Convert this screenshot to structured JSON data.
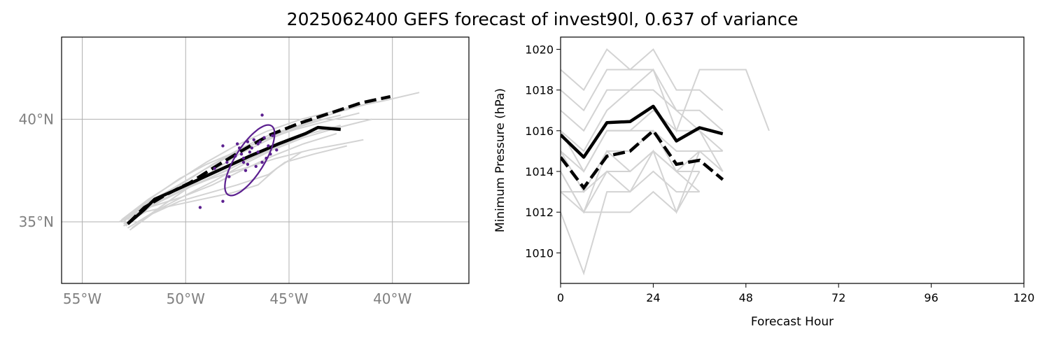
{
  "title": "2025062400 GEFS forecast of invest90l, 0.637 of variance",
  "colors": {
    "member": "#d3d3d3",
    "mean": "#000000",
    "ellipse": "#5b1f8f",
    "grid": "#b0b0b0",
    "maptick": "#808080"
  },
  "chart_data": [
    {
      "type": "map",
      "name": "track-map",
      "xlim": [
        -56,
        -36.3
      ],
      "ylim": [
        32,
        44
      ],
      "grid": true,
      "xticks": [
        -55,
        -50,
        -45,
        -40
      ],
      "xtick_labels": [
        "55°W",
        "50°W",
        "45°W",
        "40°W"
      ],
      "yticks": [
        35,
        40
      ],
      "ytick_labels": [
        "35°N",
        "40°N"
      ],
      "member_tracks": [
        [
          [
            -53.0,
            34.8
          ],
          [
            -51.6,
            35.8
          ],
          [
            -50.0,
            36.6
          ],
          [
            -48.5,
            37.3
          ],
          [
            -47.0,
            38.0
          ],
          [
            -45.5,
            38.7
          ],
          [
            -44.0,
            39.3
          ],
          [
            -42.5,
            39.7
          ]
        ],
        [
          [
            -53.2,
            35.0
          ],
          [
            -51.9,
            35.9
          ],
          [
            -50.5,
            36.7
          ],
          [
            -49.0,
            37.6
          ],
          [
            -47.5,
            38.4
          ],
          [
            -46.0,
            39.1
          ],
          [
            -44.5,
            39.7
          ],
          [
            -42.8,
            40.3
          ],
          [
            -41.0,
            40.8
          ]
        ],
        [
          [
            -52.8,
            34.7
          ],
          [
            -51.5,
            35.5
          ],
          [
            -50.0,
            36.3
          ],
          [
            -48.6,
            37.0
          ],
          [
            -47.2,
            37.8
          ],
          [
            -45.8,
            38.5
          ],
          [
            -44.3,
            39.1
          ],
          [
            -42.6,
            39.6
          ],
          [
            -41.0,
            40.0
          ]
        ],
        [
          [
            -53.1,
            35.1
          ],
          [
            -51.8,
            36.1
          ],
          [
            -50.4,
            37.0
          ],
          [
            -49.0,
            37.9
          ],
          [
            -47.6,
            38.7
          ],
          [
            -46.1,
            39.4
          ],
          [
            -44.4,
            40.0
          ],
          [
            -42.4,
            40.5
          ],
          [
            -40.4,
            40.9
          ],
          [
            -38.7,
            41.3
          ]
        ],
        [
          [
            -52.9,
            34.9
          ],
          [
            -51.7,
            35.8
          ],
          [
            -50.3,
            36.5
          ],
          [
            -48.8,
            37.1
          ],
          [
            -47.2,
            37.6
          ],
          [
            -45.6,
            38.1
          ],
          [
            -44.0,
            38.5
          ],
          [
            -42.4,
            38.8
          ],
          [
            -41.4,
            39.0
          ]
        ],
        [
          [
            -52.7,
            34.6
          ],
          [
            -51.6,
            35.4
          ],
          [
            -50.3,
            36.0
          ],
          [
            -48.9,
            36.4
          ],
          [
            -47.5,
            36.8
          ],
          [
            -46.0,
            37.3
          ],
          [
            -45.2,
            37.9
          ],
          [
            -43.8,
            38.3
          ],
          [
            -42.2,
            38.7
          ]
        ],
        [
          [
            -53.0,
            34.9
          ],
          [
            -51.9,
            35.5
          ],
          [
            -50.6,
            35.8
          ],
          [
            -49.2,
            36.1
          ],
          [
            -47.8,
            36.4
          ],
          [
            -46.5,
            36.8
          ],
          [
            -45.6,
            37.6
          ],
          [
            -44.4,
            38.4
          ]
        ],
        [
          [
            -52.6,
            34.7
          ],
          [
            -51.4,
            35.6
          ],
          [
            -50.1,
            36.5
          ],
          [
            -48.8,
            37.4
          ],
          [
            -47.4,
            38.3
          ],
          [
            -46.0,
            39.0
          ],
          [
            -44.6,
            39.6
          ],
          [
            -43.0,
            40.1
          ]
        ],
        [
          [
            -53.2,
            35.0
          ],
          [
            -51.8,
            35.7
          ],
          [
            -50.2,
            36.2
          ],
          [
            -48.7,
            36.8
          ],
          [
            -47.3,
            37.5
          ],
          [
            -45.8,
            38.2
          ],
          [
            -44.3,
            38.8
          ],
          [
            -42.7,
            39.3
          ]
        ],
        [
          [
            -52.9,
            34.8
          ],
          [
            -51.5,
            35.9
          ],
          [
            -50.1,
            36.9
          ],
          [
            -48.7,
            37.8
          ],
          [
            -47.3,
            38.6
          ],
          [
            -45.8,
            39.3
          ],
          [
            -44.1,
            39.8
          ],
          [
            -42.5,
            40.2
          ]
        ],
        [
          [
            -53.0,
            35.0
          ],
          [
            -52.0,
            35.9
          ],
          [
            -50.8,
            36.4
          ],
          [
            -49.4,
            36.9
          ],
          [
            -48.0,
            37.5
          ],
          [
            -46.7,
            38.2
          ],
          [
            -45.3,
            38.8
          ]
        ],
        [
          [
            -52.8,
            35.1
          ],
          [
            -51.6,
            36.2
          ],
          [
            -50.3,
            37.1
          ],
          [
            -49.0,
            37.8
          ],
          [
            -47.6,
            38.4
          ],
          [
            -46.2,
            39.0
          ],
          [
            -44.7,
            39.5
          ],
          [
            -43.2,
            39.9
          ],
          [
            -41.6,
            40.3
          ]
        ]
      ],
      "mean_track": [
        [
          -52.8,
          34.9
        ],
        [
          -52.0,
          35.6
        ],
        [
          -51.5,
          36.1
        ],
        [
          -50.6,
          36.5
        ],
        [
          -49.5,
          37.0
        ],
        [
          -48.2,
          37.6
        ],
        [
          -46.9,
          38.2
        ],
        [
          -45.5,
          38.8
        ],
        [
          -44.2,
          39.3
        ],
        [
          -43.6,
          39.6
        ],
        [
          -42.5,
          39.5
        ]
      ],
      "mean_track_dashed": [
        [
          -52.8,
          34.9
        ],
        [
          -52.0,
          35.7
        ],
        [
          -51.0,
          36.3
        ],
        [
          -49.8,
          36.9
        ],
        [
          -48.7,
          37.6
        ],
        [
          -47.4,
          38.4
        ],
        [
          -46.0,
          39.2
        ],
        [
          -44.5,
          39.8
        ],
        [
          -43.0,
          40.3
        ],
        [
          -41.5,
          40.8
        ],
        [
          -40.1,
          41.1
        ]
      ],
      "scatter_points": [
        [
          -46.3,
          40.2
        ],
        [
          -49.3,
          35.7
        ],
        [
          -48.2,
          36.0
        ],
        [
          -47.1,
          37.5
        ],
        [
          -47.0,
          37.8
        ],
        [
          -47.3,
          38.3
        ],
        [
          -47.6,
          38.2
        ],
        [
          -46.8,
          38.6
        ],
        [
          -46.5,
          38.8
        ],
        [
          -46.7,
          39.0
        ],
        [
          -46.4,
          38.9
        ],
        [
          -46.2,
          39.1
        ],
        [
          -47.0,
          38.9
        ],
        [
          -47.4,
          38.6
        ],
        [
          -48.2,
          38.7
        ],
        [
          -48.0,
          37.9
        ],
        [
          -48.6,
          37.6
        ],
        [
          -45.9,
          38.3
        ],
        [
          -46.1,
          38.1
        ],
        [
          -45.6,
          38.5
        ],
        [
          -46.6,
          37.7
        ],
        [
          -47.9,
          37.2
        ],
        [
          -47.2,
          38.1
        ],
        [
          -46.9,
          38.4
        ],
        [
          -46.3,
          37.9
        ],
        [
          -46.0,
          38.7
        ],
        [
          -45.8,
          39.2
        ],
        [
          -47.5,
          38.8
        ],
        [
          -46.5,
          38.4
        ],
        [
          -47.2,
          37.9
        ]
      ],
      "ellipse": {
        "center": [
          -46.9,
          38.0
        ],
        "semi_major_deg": 3.0,
        "semi_minor_deg": 1.05,
        "angle_deg": 58
      }
    },
    {
      "type": "line",
      "name": "pressure",
      "xlabel": "Forecast Hour",
      "ylabel": "Minimum Pressure (hPa)",
      "xlim": [
        0,
        120
      ],
      "ylim": [
        1008.5,
        1020.6
      ],
      "xticks": [
        0,
        24,
        48,
        72,
        96,
        120
      ],
      "yticks": [
        1010,
        1012,
        1014,
        1016,
        1018,
        1020
      ],
      "member_series": [
        {
          "x": [
            0,
            6,
            12,
            18,
            24,
            30,
            36,
            42
          ],
          "y": [
            1019,
            1018,
            1020,
            1019,
            1020,
            1018,
            1018,
            1017
          ]
        },
        {
          "x": [
            0,
            6,
            12,
            18,
            24,
            30,
            36,
            42
          ],
          "y": [
            1018,
            1017,
            1019,
            1019,
            1019,
            1017,
            1017,
            1016
          ]
        },
        {
          "x": [
            0,
            6,
            12,
            18,
            24,
            30,
            36,
            42,
            48,
            54
          ],
          "y": [
            1017,
            1016,
            1018,
            1018,
            1019,
            1016,
            1019,
            1019,
            1019,
            1016
          ]
        },
        {
          "x": [
            0,
            6,
            12,
            18,
            24,
            30,
            36,
            42
          ],
          "y": [
            1016,
            1015,
            1017,
            1018,
            1018,
            1017,
            1016,
            1015
          ]
        },
        {
          "x": [
            0,
            6,
            12,
            18,
            24,
            30,
            36,
            42
          ],
          "y": [
            1016,
            1014,
            1016,
            1016,
            1017,
            1016,
            1016,
            1014
          ]
        },
        {
          "x": [
            0,
            6,
            12,
            18,
            24,
            30,
            36,
            42
          ],
          "y": [
            1015,
            1014,
            1016,
            1016,
            1016,
            1015,
            1015,
            1015
          ]
        },
        {
          "x": [
            0,
            6,
            12,
            18,
            24,
            30,
            36,
            42
          ],
          "y": [
            1015,
            1013,
            1015,
            1015,
            1016,
            1014,
            1015,
            1014
          ]
        },
        {
          "x": [
            0,
            6,
            12,
            18,
            24,
            30,
            36
          ],
          "y": [
            1014,
            1012,
            1015,
            1014,
            1015,
            1014,
            1013
          ]
        },
        {
          "x": [
            0,
            6,
            12,
            18,
            24,
            30,
            36
          ],
          "y": [
            1013,
            1013,
            1014,
            1013,
            1014,
            1013,
            1013
          ]
        },
        {
          "x": [
            0,
            6,
            12,
            18,
            24,
            30,
            36
          ],
          "y": [
            1013,
            1012,
            1012,
            1012,
            1013,
            1012,
            1014
          ]
        },
        {
          "x": [
            0,
            6,
            12,
            18,
            24,
            30,
            36
          ],
          "y": [
            1012,
            1009,
            1013,
            1013,
            1015,
            1012,
            1015
          ]
        },
        {
          "x": [
            0,
            6,
            12,
            18,
            24,
            30,
            36
          ],
          "y": [
            1014,
            1012,
            1014,
            1014,
            1015,
            1014,
            1014
          ]
        }
      ],
      "mean_series": {
        "x": [
          0,
          6,
          12,
          18,
          24,
          30,
          36,
          42
        ],
        "y": [
          1015.8,
          1014.7,
          1016.4,
          1016.45,
          1017.2,
          1015.5,
          1016.15,
          1015.85
        ]
      },
      "mean_series_dashed": {
        "x": [
          0,
          6,
          12,
          18,
          24,
          30,
          36,
          42
        ],
        "y": [
          1014.7,
          1013.2,
          1014.75,
          1015.0,
          1016.0,
          1014.35,
          1014.55,
          1013.6
        ]
      }
    }
  ]
}
